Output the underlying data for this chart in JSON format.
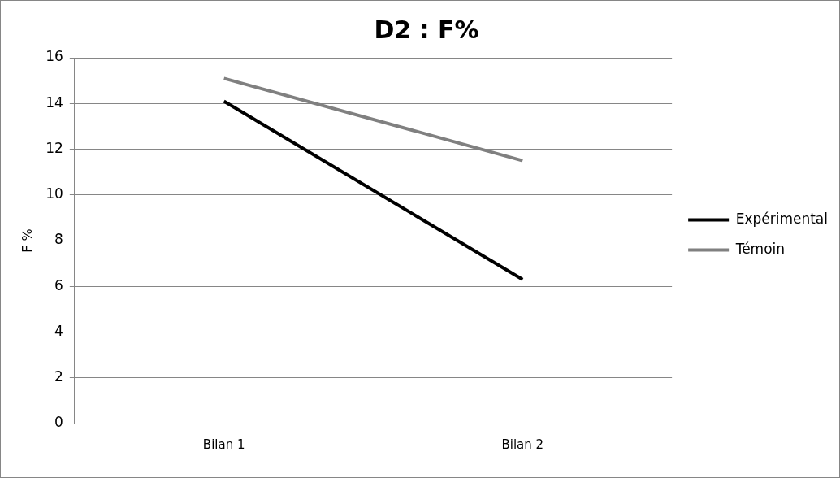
{
  "chart_data": {
    "type": "line",
    "title": "D2 : F%",
    "ylabel": "F %",
    "categories": [
      "Bilan 1",
      "Bilan 2"
    ],
    "series": [
      {
        "name": "Expérimental",
        "color": "#000000",
        "values": [
          14.1,
          6.3
        ]
      },
      {
        "name": "Témoin",
        "color": "#808080",
        "values": [
          15.1,
          11.5
        ]
      }
    ],
    "ylim": [
      0,
      16
    ],
    "yticks": [
      0,
      2,
      4,
      6,
      8,
      10,
      12,
      14,
      16
    ],
    "grid": "y",
    "legend": "right"
  }
}
